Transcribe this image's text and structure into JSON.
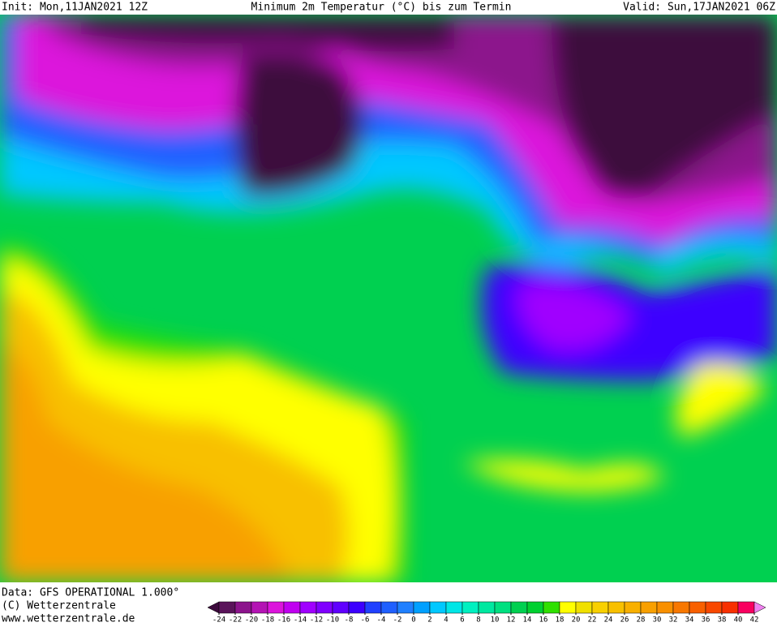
{
  "header": {
    "init": "Init: Mon,11JAN2021 12Z",
    "title": "Minimum 2m Temperatur (°C) bis zum Termin",
    "valid": "Valid: Sun,17JAN2021 06Z"
  },
  "footer": {
    "source": "Data: GFS OPERATIONAL 1.000°",
    "copyright": "(C) Wetterzentrale",
    "url": "www.wetterzentrale.de"
  },
  "legend": {
    "ticks": [
      -24,
      -22,
      -20,
      -18,
      -16,
      -14,
      -12,
      -10,
      -8,
      -6,
      -4,
      -2,
      0,
      2,
      4,
      6,
      8,
      10,
      12,
      14,
      16,
      18,
      20,
      22,
      24,
      26,
      28,
      30,
      32,
      34,
      36,
      38,
      40,
      42
    ],
    "colors": [
      "#3c0a3c",
      "#5a145a",
      "#8c148c",
      "#b414b4",
      "#dc14dc",
      "#c000f0",
      "#a000ff",
      "#8000ff",
      "#6000ff",
      "#3c00ff",
      "#2040ff",
      "#2060ff",
      "#2080ff",
      "#00a0ff",
      "#00c8ff",
      "#00e6e6",
      "#00f0c0",
      "#00e8a0",
      "#00e080",
      "#00d050",
      "#00d030",
      "#30e000",
      "#ffff00",
      "#f0e000",
      "#f8d000",
      "#f8c000",
      "#f8b000",
      "#f8a000",
      "#f89000",
      "#f87800",
      "#f86000",
      "#f84800",
      "#f83000",
      "#f80060",
      "#f080f0"
    ]
  }
}
